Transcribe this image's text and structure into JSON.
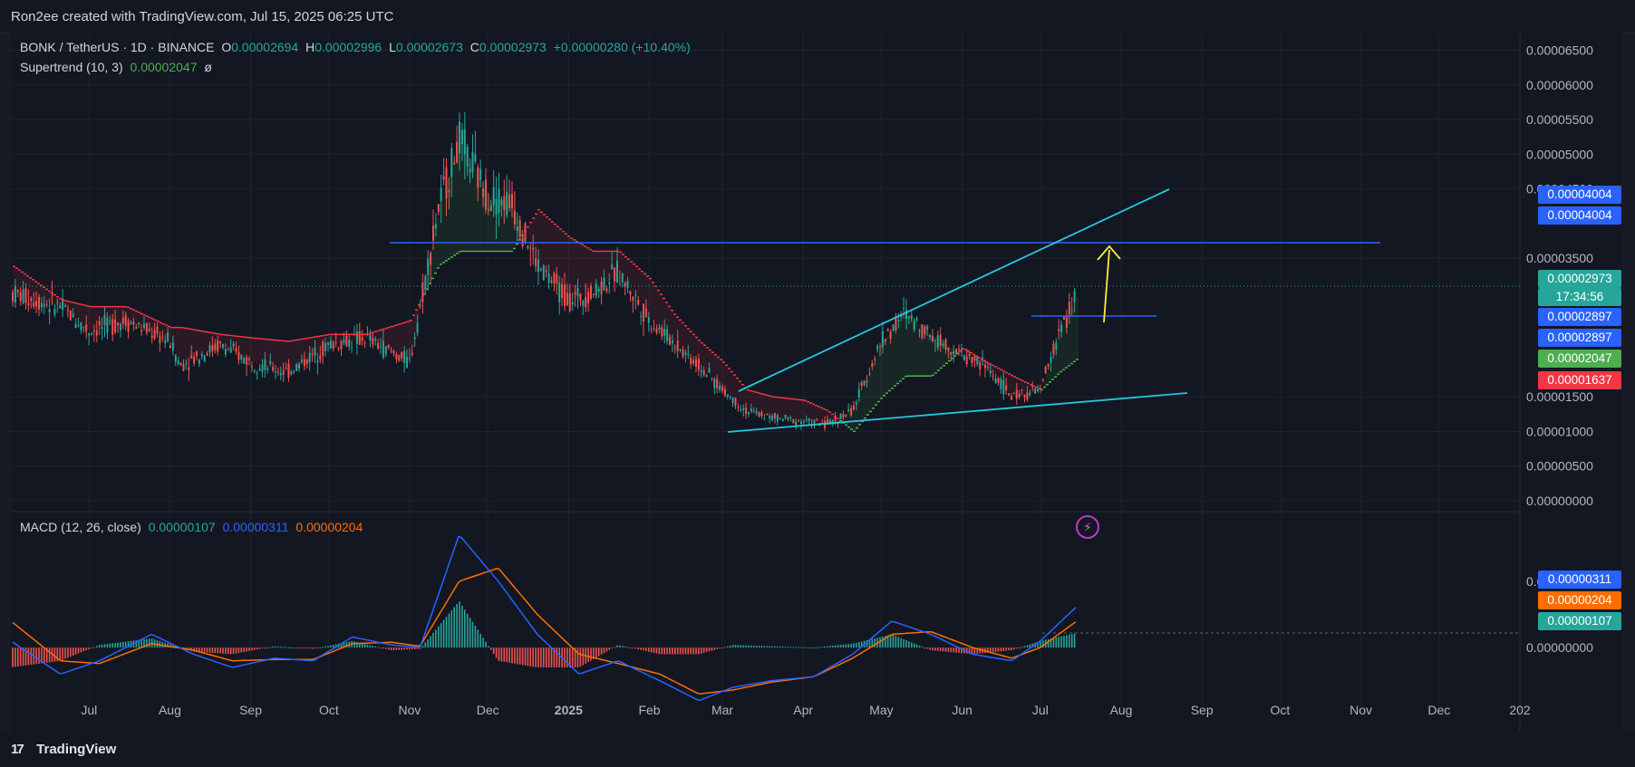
{
  "header": {
    "credit": "Ron2ee created with TradingView.com, Jul 15, 2025 06:25 UTC"
  },
  "legend": {
    "symbol": "BONK / TetherUS · 1D · BINANCE",
    "open_label": "O",
    "open": "0.00002694",
    "high_label": "H",
    "high": "0.00002996",
    "low_label": "L",
    "low": "0.00002673",
    "close_label": "C",
    "close": "0.00002973",
    "change": "+0.00000280 (+10.40%)",
    "supertrend_label": "Supertrend (10, 3)",
    "supertrend_value": "0.00002047",
    "supertrend_suffix": "ø",
    "macd_label": "MACD (12, 26, close)",
    "macd_hist": "0.00000107",
    "macd_line": "0.00000311",
    "macd_signal": "0.00000204"
  },
  "price_axis": {
    "ticks": [
      "0.00006500",
      "0.00006000",
      "0.00005500",
      "0.00005000",
      "0.00004500",
      "0.00003500",
      "0.00001500",
      "0.00001000",
      "0.00000500",
      "0.00000000"
    ]
  },
  "macd_axis": {
    "ticks": [
      "0.00000500",
      "0.00000000"
    ]
  },
  "time_axis": {
    "labels": [
      "Jul",
      "Aug",
      "Sep",
      "Oct",
      "Nov",
      "Dec",
      "2025",
      "Feb",
      "Mar",
      "Apr",
      "May",
      "Jun",
      "Jul",
      "Aug",
      "Sep",
      "Oct",
      "Nov",
      "Dec",
      "202"
    ]
  },
  "badges": {
    "resistance_top": "0.00004004",
    "resistance": "0.00004004",
    "last_price": "0.00002973",
    "countdown": "17:34:56",
    "breakout_top": "0.00002897",
    "breakout": "0.00002897",
    "supertrend": "0.00002047",
    "supertrend_upper": "0.00001637",
    "macd_line": "0.00000311",
    "macd_signal": "0.00000204",
    "macd_hist": "0.00000107"
  },
  "colors": {
    "background": "#131722",
    "up": "#26a69a",
    "down": "#ef5350",
    "supertrend_up": "#4caf50",
    "supertrend_down": "#f23645",
    "macd_line": "#2962ff",
    "macd_signal": "#ff6d00",
    "resistance_line": "#2962ff",
    "trendline": "#26c6da",
    "arrow": "#ffeb3b"
  },
  "chart_data": {
    "type": "line",
    "title": "BONK / TetherUS · 1D · BINANCE",
    "x": [
      "2024-06-01",
      "2024-06-20",
      "2024-07-01",
      "2024-07-15",
      "2024-08-01",
      "2024-08-05",
      "2024-08-20",
      "2024-09-01",
      "2024-09-15",
      "2024-10-01",
      "2024-10-15",
      "2024-11-01",
      "2024-11-12",
      "2024-11-20",
      "2024-12-01",
      "2024-12-10",
      "2024-12-20",
      "2025-01-01",
      "2025-01-10",
      "2025-01-20",
      "2025-02-01",
      "2025-02-10",
      "2025-02-20",
      "2025-03-01",
      "2025-03-10",
      "2025-03-20",
      "2025-04-01",
      "2025-04-10",
      "2025-04-20",
      "2025-05-01",
      "2025-05-10",
      "2025-05-20",
      "2025-06-01",
      "2025-06-10",
      "2025-06-20",
      "2025-07-01",
      "2025-07-08",
      "2025-07-15"
    ],
    "series": [
      {
        "values": [
          3e-05,
          2.8e-05,
          2.45e-05,
          2.6e-05,
          2.3e-05,
          1.95e-05,
          2.25e-05,
          2e-05,
          1.85e-05,
          2.25e-05,
          2.35e-05,
          2e-05,
          4.2e-05,
          5.2e-05,
          4.4e-05,
          4.3e-05,
          3.4e-05,
          2.9e-05,
          3e-05,
          3.3e-05,
          2.6e-05,
          2.3e-05,
          1.95e-05,
          1.6e-05,
          1.3e-05,
          1.2e-05,
          1.15e-05,
          1.1e-05,
          1.3e-05,
          2.3e-05,
          2.7e-05,
          2.4e-05,
          2.1e-05,
          1.95e-05,
          1.5e-05,
          1.6e-05,
          2.4e-05,
          2.97e-05
        ]
      },
      {
        "values": [
          3.4e-05,
          2.9e-05,
          2.8e-05,
          2.8e-05,
          2.5e-05,
          2.5e-05,
          2.4e-05,
          2.35e-05,
          2.3e-05,
          2.4e-05,
          2.4e-05,
          2.6e-05,
          3.4e-05,
          3.6e-05,
          3.6e-05,
          3.6e-05,
          4.2e-05,
          3.8e-05,
          3.6e-05,
          3.6e-05,
          3.2e-05,
          2.7e-05,
          2.3e-05,
          2e-05,
          1.6e-05,
          1.5e-05,
          1.45e-05,
          1.3e-05,
          1e-05,
          1.5e-05,
          1.8e-05,
          1.8e-05,
          2.2e-05,
          2e-05,
          1.8e-05,
          1.6e-05,
          1.85e-05,
          2.05e-05
        ]
      }
    ],
    "ylim": [
      0,
      6.65e-05
    ],
    "grid": true,
    "annotations": {
      "resistance": 4.004e-05,
      "breakout": 2.897e-05,
      "upper_trend": [
        [
          "2025-03-10",
          1.4e-05
        ],
        [
          "2025-09-01",
          4.35e-05
        ]
      ],
      "lower_trend": [
        [
          "2025-03-05",
          8.5e-06
        ],
        [
          "2025-09-05",
          1.35e-05
        ]
      ],
      "target_arrow": [
        [
          "2025-07-22",
          2.9e-05
        ],
        [
          "2025-07-22",
          4e-05
        ]
      ]
    },
    "macd": {
      "x": [
        "2024-06-01",
        "2024-06-20",
        "2024-07-05",
        "2024-07-25",
        "2024-08-10",
        "2024-08-25",
        "2024-09-10",
        "2024-09-25",
        "2024-10-10",
        "2024-10-25",
        "2024-11-05",
        "2024-11-20",
        "2024-12-05",
        "2024-12-20",
        "2025-01-05",
        "2025-01-20",
        "2025-02-05",
        "2025-02-20",
        "2025-03-05",
        "2025-03-20",
        "2025-04-05",
        "2025-04-20",
        "2025-05-05",
        "2025-05-20",
        "2025-06-05",
        "2025-06-20",
        "2025-07-01",
        "2025-07-15"
      ],
      "macd": [
        5e-07,
        -2e-06,
        -1e-06,
        1e-06,
        -5e-07,
        -1.5e-06,
        -8e-07,
        -1e-06,
        8e-07,
        2e-07,
        0.0,
        8.5e-06,
        5e-06,
        1e-06,
        -2e-06,
        -1e-06,
        -2.5e-06,
        -4e-06,
        -3e-06,
        -2.5e-06,
        -2.2e-06,
        -5e-07,
        2e-06,
        1e-06,
        -5e-07,
        -1e-06,
        5e-07,
        3.1e-06
      ],
      "signal": [
        2e-06,
        -1e-06,
        -1.2e-06,
        3e-07,
        -2e-07,
        -1e-06,
        -9e-07,
        -9e-07,
        3e-07,
        4e-07,
        1e-07,
        5e-06,
        6e-06,
        2.5e-06,
        -5e-07,
        -1.2e-06,
        -2e-06,
        -3.5e-06,
        -3.2e-06,
        -2.6e-06,
        -2.2e-06,
        -8e-07,
        1e-06,
        1.2e-06,
        0.0,
        -8e-07,
        0.0,
        2e-06
      ],
      "hist": [
        -1.5e-06,
        -1e-06,
        2e-07,
        7e-07,
        -3e-07,
        -5e-07,
        1e-07,
        -1e-07,
        5e-07,
        -2e-07,
        -1e-07,
        3.5e-06,
        -1e-06,
        -1.5e-06,
        -1.5e-06,
        2e-07,
        -5e-07,
        -5e-07,
        2e-07,
        1e-07,
        0.0,
        3e-07,
        1e-06,
        -2e-07,
        -5e-07,
        -2e-07,
        5e-07,
        1.1e-06
      ],
      "ylim": [
        -4.5e-06,
        9.5e-06
      ]
    }
  }
}
